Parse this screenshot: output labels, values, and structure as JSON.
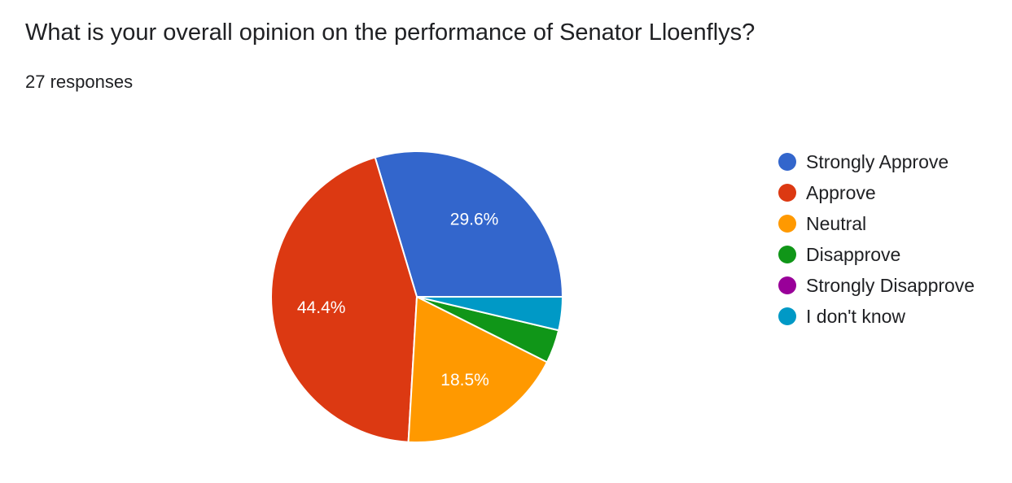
{
  "title": "What is your overall opinion on the performance of Senator Lloenflys?",
  "subtitle": "27 responses",
  "chart_data": {
    "type": "pie",
    "title": "What is your overall opinion on the performance of Senator Lloenflys?",
    "categories": [
      "Strongly Approve",
      "Approve",
      "Neutral",
      "Disapprove",
      "Strongly Disapprove",
      "I don't know"
    ],
    "values": [
      8,
      12,
      5,
      1,
      0,
      1
    ],
    "percent_labels": [
      "29.6%",
      "44.4%",
      "18.5%",
      "",
      "",
      ""
    ],
    "colors": [
      "#3366cc",
      "#dc3912",
      "#ff9900",
      "#109618",
      "#990099",
      "#0099c6"
    ],
    "legend_position": "right"
  }
}
